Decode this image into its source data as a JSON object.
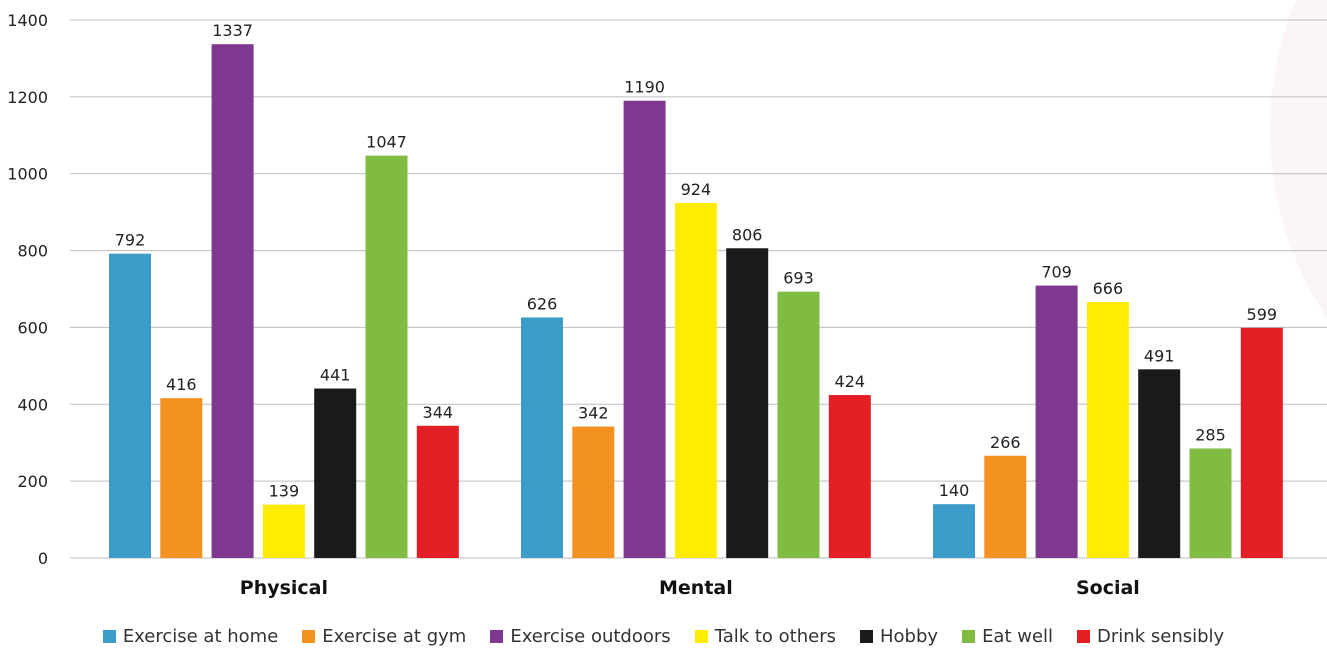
{
  "chart_data": {
    "type": "bar",
    "categories": [
      "Physical",
      "Mental",
      "Social"
    ],
    "series": [
      {
        "name": "Exercise at home",
        "color": "#3a9cc7",
        "values": [
          792,
          626,
          140
        ]
      },
      {
        "name": "Exercise at gym",
        "color": "#f39220",
        "values": [
          416,
          342,
          266
        ]
      },
      {
        "name": "Exercise outdoors",
        "color": "#7e3890",
        "values": [
          1337,
          1190,
          709
        ]
      },
      {
        "name": "Talk to others",
        "color": "#ffec00",
        "values": [
          139,
          924,
          666
        ]
      },
      {
        "name": "Hobby",
        "color": "#1a1a1a",
        "values": [
          441,
          806,
          491
        ]
      },
      {
        "name": "Eat well",
        "color": "#7fbc41",
        "values": [
          1047,
          693,
          285
        ]
      },
      {
        "name": "Drink sensibly",
        "color": "#e31e25",
        "values": [
          344,
          424,
          599
        ]
      }
    ],
    "ylim": [
      0,
      1400
    ],
    "yticks": [
      0,
      200,
      400,
      600,
      800,
      1000,
      1200,
      1400
    ],
    "grid": true,
    "legend_position": "bottom",
    "title": "",
    "xlabel": "",
    "ylabel": ""
  }
}
